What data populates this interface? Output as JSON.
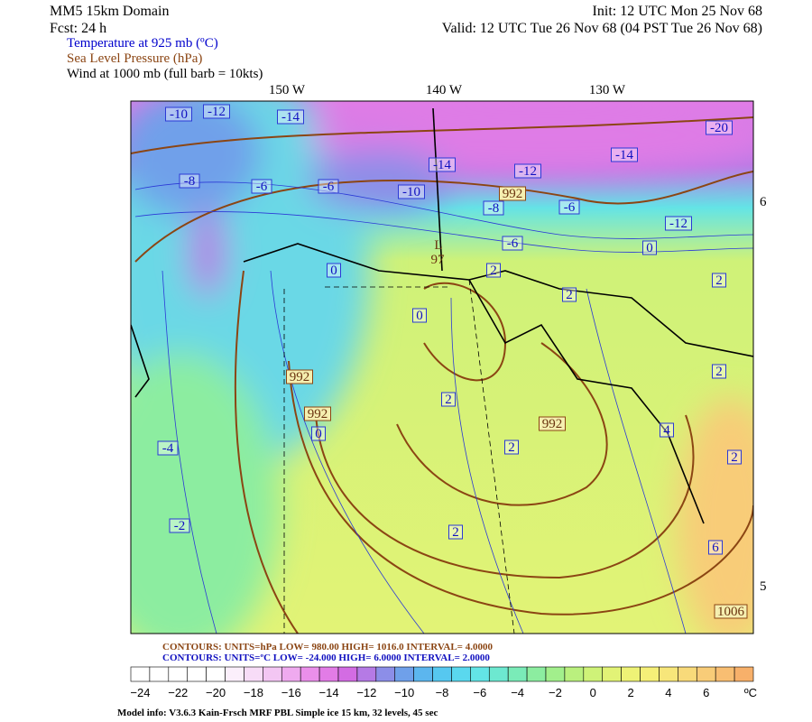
{
  "header": {
    "title": "MM5 15km Domain",
    "forecast": "Fcst:   24 h",
    "init": "Init: 12 UTC Mon 25 Nov 68",
    "valid": "Valid: 12 UTC Tue 26 Nov 68 (04 PST Tue 26 Nov 68)",
    "fields": [
      {
        "text": "Temperature at 925 mb (ºC)",
        "color": "#0000cc"
      },
      {
        "text": "Sea Level Pressure (hPa)",
        "color": "#8b4513"
      },
      {
        "text": "Wind at 1000 mb (full barb = 10kts)",
        "color": "#000000"
      }
    ]
  },
  "longitudes": [
    "150 W",
    "140 W",
    "130 W"
  ],
  "latitudes": [
    "6",
    "5"
  ],
  "temperature_labels": [
    "-10",
    "-12",
    "-14",
    "-20",
    "-14",
    "-12",
    "-14",
    "-8",
    "-6",
    "-6",
    "-10",
    "-8",
    "-6",
    "-12",
    "-6",
    "0",
    "2",
    "0",
    "2",
    "2",
    "0",
    "2",
    "2",
    "2",
    "4",
    "2",
    "0",
    "-4",
    "-2",
    "2",
    "6"
  ],
  "pressure_labels": [
    "L",
    "97",
    "992",
    "992",
    "992",
    "992",
    "1006"
  ],
  "contour_info": {
    "pressure": "CONTOURS:  UNITS=hPa   LOW=   980.00        HIGH=   1016.0       INTERVAL=     4.0000",
    "temperature": "CONTOURS:  UNITS=ºC   LOW=  -24.000        HIGH=   6.0000       INTERVAL=     2.0000"
  },
  "colorbar": {
    "labels": [
      "−24",
      "−22",
      "−20",
      "−18",
      "−16",
      "−14",
      "−12",
      "−10",
      "−8",
      "−6",
      "−4",
      "−2",
      "0",
      "2",
      "4",
      "6"
    ],
    "unit": "ºC",
    "colors": [
      "#ffffff",
      "#ffffff",
      "#ffffff",
      "#ffffff",
      "#ffffff",
      "#fbeffb",
      "#f7dcf7",
      "#f3c6f3",
      "#efaaef",
      "#ea8fea",
      "#e27ce6",
      "#d36ce3",
      "#b57ae5",
      "#8c8ee8",
      "#6fa0ea",
      "#5cb6ee",
      "#56c8f0",
      "#5ad8ee",
      "#63e4e6",
      "#6de8d0",
      "#7aebb8",
      "#8ceda0",
      "#a2ef8c",
      "#baf07e",
      "#cff278",
      "#e2f376",
      "#eef276",
      "#f5ef78",
      "#f7e67a",
      "#f8da7a",
      "#f8cc78",
      "#f8be72",
      "#f7b06a"
    ]
  },
  "footer": "Model info: V3.6.3 Kain-Frsch MRF PBL     Simple ice    15 km,  32 levels,   45 sec"
}
